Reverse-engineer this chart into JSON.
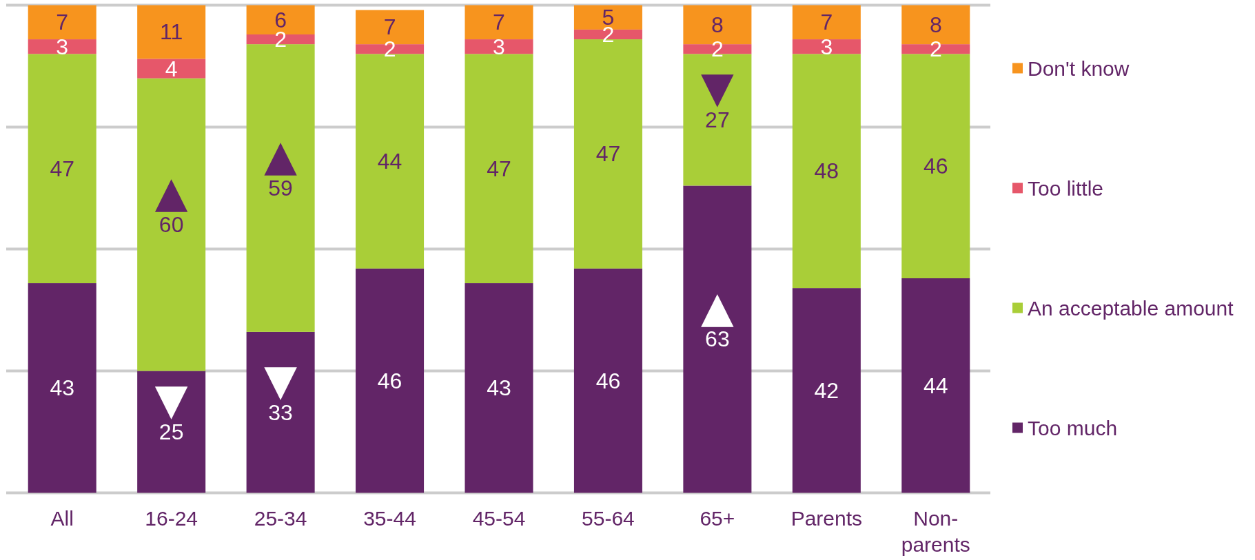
{
  "chart_data": {
    "type": "bar",
    "stacked": true,
    "categories": [
      "All",
      "16-24",
      "25-34",
      "35-44",
      "45-54",
      "55-64",
      "65+",
      "Parents",
      "Non-parents"
    ],
    "series": [
      {
        "name": "Too much",
        "color": "#622567",
        "values": [
          43,
          25,
          33,
          46,
          43,
          46,
          63,
          42,
          44
        ]
      },
      {
        "name": "An acceptable amount",
        "color": "#a9ce38",
        "values": [
          47,
          60,
          59,
          44,
          47,
          47,
          27,
          48,
          46
        ]
      },
      {
        "name": "Too little",
        "color": "#e6576a",
        "values": [
          3,
          4,
          2,
          2,
          3,
          2,
          2,
          3,
          2
        ]
      },
      {
        "name": "Don't know",
        "color": "#f7941e",
        "values": [
          7,
          11,
          6,
          7,
          7,
          5,
          8,
          7,
          8
        ]
      }
    ],
    "ylim": [
      0,
      100
    ],
    "yticks": [
      {
        "value": 0,
        "label": null
      },
      {
        "value": 25,
        "label": null
      },
      {
        "value": 50,
        "label": null
      },
      {
        "value": 75,
        "label": null
      },
      {
        "value": 100,
        "label": null
      }
    ],
    "grid": "y",
    "tick_labels": "x",
    "data_labels": true,
    "legend": "right",
    "annotations": [
      {
        "text": "▲",
        "x": "16-24",
        "y": 85
      },
      {
        "text": "▼",
        "x": "16-24",
        "y": 25
      },
      {
        "text": "▲",
        "x": "25-34",
        "y": 92
      },
      {
        "text": "▼",
        "x": "25-34",
        "y": 33
      },
      {
        "text": "▼",
        "x": "65+",
        "y": 90
      },
      {
        "text": "▲",
        "x": "65+",
        "y": 63
      }
    ]
  }
}
